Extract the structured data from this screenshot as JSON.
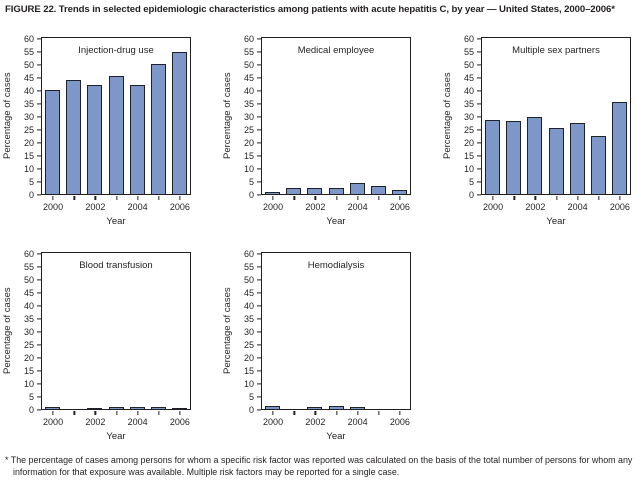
{
  "figure": {
    "title": "FIGURE 22. Trends in selected epidemiologic characteristics among patients with acute hepatitis C, by year — United States, 2000–2006*",
    "footnote_marker": "*",
    "footnote_text": "The percentage of cases among persons for whom a specific risk factor was reported was calculated on the basis of the total number of persons for whom any information for that exposure was available. Multiple risk factors may be reported for a single case."
  },
  "colors": {
    "bar_fill": "#7d97c9",
    "bar_border": "#1e222b",
    "axis": "#231f20"
  },
  "chart_data": [
    {
      "type": "bar",
      "title": "Injection-drug use",
      "xlabel": "Year",
      "ylabel": "Percentage of cases",
      "ylim": [
        0,
        60
      ],
      "ytick_step": 5,
      "grid": false,
      "x": [
        2000,
        2001,
        2002,
        2003,
        2004,
        2005,
        2006
      ],
      "xtick_labels": [
        2000,
        2002,
        2004,
        2006
      ],
      "values": [
        40,
        44,
        42,
        45.5,
        42,
        50,
        54.5
      ]
    },
    {
      "type": "bar",
      "title": "Medical employee",
      "xlabel": "Year",
      "ylabel": "Percentage of cases",
      "ylim": [
        0,
        60
      ],
      "ytick_step": 5,
      "grid": false,
      "x": [
        2000,
        2001,
        2002,
        2003,
        2004,
        2005,
        2006
      ],
      "xtick_labels": [
        2000,
        2002,
        2004,
        2006
      ],
      "values": [
        0.7,
        2.5,
        2.5,
        2.3,
        4.2,
        3.2,
        1.5
      ]
    },
    {
      "type": "bar",
      "title": "Multiple sex partners",
      "xlabel": "Year",
      "ylabel": "Percentage of cases",
      "ylim": [
        0,
        60
      ],
      "ytick_step": 5,
      "grid": false,
      "x": [
        2000,
        2001,
        2002,
        2003,
        2004,
        2005,
        2006
      ],
      "xtick_labels": [
        2000,
        2002,
        2004,
        2006
      ],
      "values": [
        28.5,
        28,
        29.5,
        25.5,
        27.5,
        22.5,
        35.5
      ]
    },
    {
      "type": "bar",
      "title": "Blood transfusion",
      "xlabel": "Year",
      "ylabel": "Percentage of cases",
      "ylim": [
        0,
        60
      ],
      "ytick_step": 5,
      "grid": false,
      "x": [
        2000,
        2001,
        2002,
        2003,
        2004,
        2005,
        2006
      ],
      "xtick_labels": [
        2000,
        2002,
        2004,
        2006
      ],
      "values": [
        0.7,
        0,
        0.4,
        0.7,
        0.7,
        0.7,
        0.2
      ]
    },
    {
      "type": "bar",
      "title": "Hemodialysis",
      "xlabel": "Year",
      "ylabel": "Percentage of cases",
      "ylim": [
        0,
        60
      ],
      "ytick_step": 5,
      "grid": false,
      "x": [
        2000,
        2001,
        2002,
        2003,
        2004,
        2005,
        2006
      ],
      "xtick_labels": [
        2000,
        2002,
        2004,
        2006
      ],
      "values": [
        1.2,
        0,
        0.6,
        1.2,
        0.6,
        0,
        0
      ]
    }
  ]
}
